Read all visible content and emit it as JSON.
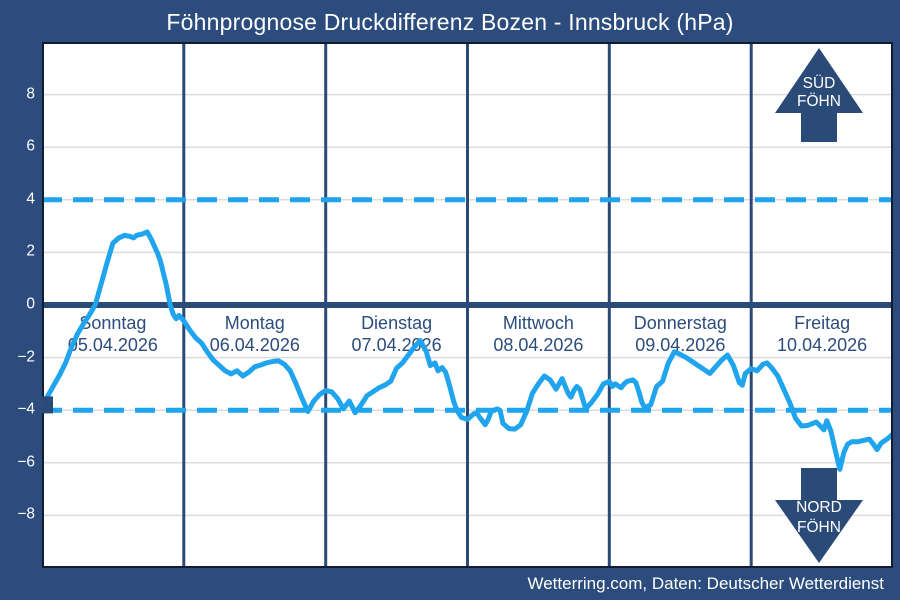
{
  "title": "Föhnprognose Druckdifferenz Bozen - Innsbruck (hPa)",
  "footer": "Wetterring.com, Daten: Deutscher Wetterdienst",
  "colors": {
    "navy_bg": "#2b4c7d",
    "navy_line": "#2a4a78",
    "plot_bg": "#ffffff",
    "plot_border": "#111c30",
    "grid_gray": "#dcdcdc",
    "line_blue": "#1fa4ed",
    "dash_blue": "#1fa4ed",
    "label_navy": "#2b4c7d",
    "text_white": "#ffffff"
  },
  "chart_data": {
    "type": "line",
    "title": "Föhnprognose Druckdifferenz Bozen - Innsbruck (hPa)",
    "xlabel": "",
    "ylabel": "hPa",
    "ylim": [
      -10,
      10
    ],
    "grid": true,
    "yticks": [
      {
        "value": 8,
        "label": "8"
      },
      {
        "value": 6,
        "label": "6"
      },
      {
        "value": 4,
        "label": "4"
      },
      {
        "value": 2,
        "label": "2"
      },
      {
        "value": 0,
        "label": "0"
      },
      {
        "value": -2,
        "label": "−2"
      },
      {
        "value": -4,
        "label": "−4"
      },
      {
        "value": -6,
        "label": "−6"
      },
      {
        "value": -8,
        "label": "−8"
      }
    ],
    "threshold_lines": [
      4,
      -4
    ],
    "zero_line": 0,
    "hours_per_day": 24,
    "total_hours": 144,
    "days": [
      {
        "label": "Sonntag",
        "date": "05.04.2026"
      },
      {
        "label": "Montag",
        "date": "06.04.2026"
      },
      {
        "label": "Dienstag",
        "date": "07.04.2026"
      },
      {
        "label": "Mittwoch",
        "date": "08.04.2026"
      },
      {
        "label": "Donnerstag",
        "date": "09.04.2026"
      },
      {
        "label": "Freitag",
        "date": "10.04.2026"
      }
    ],
    "start_marker": {
      "hour": 0,
      "value": -3.8
    },
    "annotations": {
      "sued_foehn": {
        "line1": "SÜD",
        "line2": "FÖHN",
        "direction": "up",
        "position": "top-right"
      },
      "nord_foehn": {
        "line1": "NORD",
        "line2": "FÖHN",
        "direction": "down",
        "position": "bottom-right"
      }
    },
    "series": [
      {
        "name": "Druckdifferenz Bozen - Innsbruck (hPa)",
        "points": [
          [
            0,
            -3.8
          ],
          [
            1,
            -3.45
          ],
          [
            2,
            -3.05
          ],
          [
            3,
            -2.65
          ],
          [
            4,
            -2.2
          ],
          [
            5,
            -1.6
          ],
          [
            6,
            -1.1
          ],
          [
            7,
            -0.72
          ],
          [
            8,
            -0.38
          ],
          [
            9,
            0
          ],
          [
            10,
            0.8
          ],
          [
            11,
            1.6
          ],
          [
            12,
            2.35
          ],
          [
            13,
            2.55
          ],
          [
            14,
            2.65
          ],
          [
            15,
            2.6
          ],
          [
            15.5,
            2.55
          ],
          [
            16,
            2.65
          ],
          [
            17,
            2.7
          ],
          [
            17.8,
            2.78
          ],
          [
            18.5,
            2.5
          ],
          [
            19.5,
            2.0
          ],
          [
            20,
            1.7
          ],
          [
            21,
            0.8
          ],
          [
            21.7,
            0
          ],
          [
            22.2,
            -0.35
          ],
          [
            22.7,
            -0.52
          ],
          [
            23.2,
            -0.4
          ],
          [
            24,
            -0.6
          ],
          [
            25,
            -0.95
          ],
          [
            26,
            -1.25
          ],
          [
            27,
            -1.45
          ],
          [
            28,
            -1.8
          ],
          [
            29,
            -2.1
          ],
          [
            30,
            -2.3
          ],
          [
            31,
            -2.5
          ],
          [
            32,
            -2.62
          ],
          [
            33,
            -2.5
          ],
          [
            34,
            -2.7
          ],
          [
            35,
            -2.55
          ],
          [
            36,
            -2.35
          ],
          [
            37,
            -2.28
          ],
          [
            38,
            -2.2
          ],
          [
            39,
            -2.15
          ],
          [
            40,
            -2.12
          ],
          [
            41,
            -2.25
          ],
          [
            42,
            -2.5
          ],
          [
            43,
            -3.0
          ],
          [
            44,
            -3.55
          ],
          [
            45,
            -4.05
          ],
          [
            46,
            -3.65
          ],
          [
            47,
            -3.4
          ],
          [
            48,
            -3.25
          ],
          [
            49,
            -3.3
          ],
          [
            50,
            -3.55
          ],
          [
            51,
            -3.95
          ],
          [
            52,
            -3.65
          ],
          [
            53,
            -4.1
          ],
          [
            54,
            -3.8
          ],
          [
            55,
            -3.45
          ],
          [
            56,
            -3.3
          ],
          [
            57,
            -3.15
          ],
          [
            58,
            -3.05
          ],
          [
            59,
            -2.9
          ],
          [
            60,
            -2.4
          ],
          [
            61,
            -2.2
          ],
          [
            62,
            -1.9
          ],
          [
            63,
            -1.6
          ],
          [
            64,
            -1.35
          ],
          [
            65,
            -1.75
          ],
          [
            65.7,
            -2.3
          ],
          [
            66.5,
            -2.2
          ],
          [
            67,
            -2.5
          ],
          [
            67.7,
            -2.38
          ],
          [
            68.3,
            -2.55
          ],
          [
            69,
            -3.1
          ],
          [
            69.7,
            -3.7
          ],
          [
            70.3,
            -4.05
          ],
          [
            71,
            -4.28
          ],
          [
            72,
            -4.35
          ],
          [
            73,
            -4.15
          ],
          [
            73.5,
            -4.1
          ],
          [
            74,
            -4.25
          ],
          [
            75,
            -4.55
          ],
          [
            75.5,
            -4.35
          ],
          [
            76,
            -4.05
          ],
          [
            77,
            -3.95
          ],
          [
            77.5,
            -4.0
          ],
          [
            78,
            -4.5
          ],
          [
            79,
            -4.7
          ],
          [
            80,
            -4.72
          ],
          [
            81,
            -4.55
          ],
          [
            82,
            -4.05
          ],
          [
            83,
            -3.35
          ],
          [
            84,
            -3.0
          ],
          [
            85,
            -2.7
          ],
          [
            86,
            -2.85
          ],
          [
            87,
            -3.2
          ],
          [
            88,
            -2.8
          ],
          [
            89,
            -3.35
          ],
          [
            89.5,
            -3.5
          ],
          [
            90,
            -3.25
          ],
          [
            90.5,
            -3.1
          ],
          [
            91,
            -3.2
          ],
          [
            92,
            -3.95
          ],
          [
            93,
            -3.7
          ],
          [
            94,
            -3.4
          ],
          [
            95,
            -3.0
          ],
          [
            96,
            -2.9
          ],
          [
            96.5,
            -3.1
          ],
          [
            97,
            -3.0
          ],
          [
            98,
            -3.15
          ],
          [
            98.5,
            -3.0
          ],
          [
            99,
            -2.9
          ],
          [
            100,
            -2.85
          ],
          [
            100.5,
            -2.95
          ],
          [
            101,
            -3.3
          ],
          [
            101.5,
            -3.7
          ],
          [
            102,
            -3.9
          ],
          [
            103,
            -3.8
          ],
          [
            104,
            -3.1
          ],
          [
            105,
            -2.9
          ],
          [
            106,
            -2.2
          ],
          [
            107,
            -1.78
          ],
          [
            108,
            -1.88
          ],
          [
            109,
            -2.0
          ],
          [
            110,
            -2.15
          ],
          [
            111,
            -2.3
          ],
          [
            112,
            -2.45
          ],
          [
            113,
            -2.6
          ],
          [
            114,
            -2.35
          ],
          [
            115,
            -2.1
          ],
          [
            116,
            -1.9
          ],
          [
            117,
            -2.3
          ],
          [
            118,
            -2.95
          ],
          [
            118.5,
            -3.05
          ],
          [
            119,
            -2.6
          ],
          [
            120,
            -2.42
          ],
          [
            121,
            -2.5
          ],
          [
            122,
            -2.25
          ],
          [
            122.7,
            -2.2
          ],
          [
            123.5,
            -2.4
          ],
          [
            124.5,
            -2.7
          ],
          [
            125.5,
            -3.2
          ],
          [
            126.5,
            -3.7
          ],
          [
            127.5,
            -4.3
          ],
          [
            128.5,
            -4.6
          ],
          [
            129.5,
            -4.58
          ],
          [
            130.5,
            -4.5
          ],
          [
            131,
            -4.45
          ],
          [
            131.7,
            -4.6
          ],
          [
            132.3,
            -4.75
          ],
          [
            132.8,
            -4.4
          ],
          [
            133.5,
            -4.8
          ],
          [
            134.2,
            -5.5
          ],
          [
            135,
            -6.25
          ],
          [
            135.7,
            -5.6
          ],
          [
            136.3,
            -5.3
          ],
          [
            137,
            -5.2
          ],
          [
            138,
            -5.2
          ],
          [
            139,
            -5.15
          ],
          [
            140,
            -5.1
          ],
          [
            140.7,
            -5.3
          ],
          [
            141.3,
            -5.5
          ],
          [
            142,
            -5.25
          ],
          [
            143,
            -5.1
          ],
          [
            144,
            -4.9
          ]
        ]
      }
    ]
  }
}
